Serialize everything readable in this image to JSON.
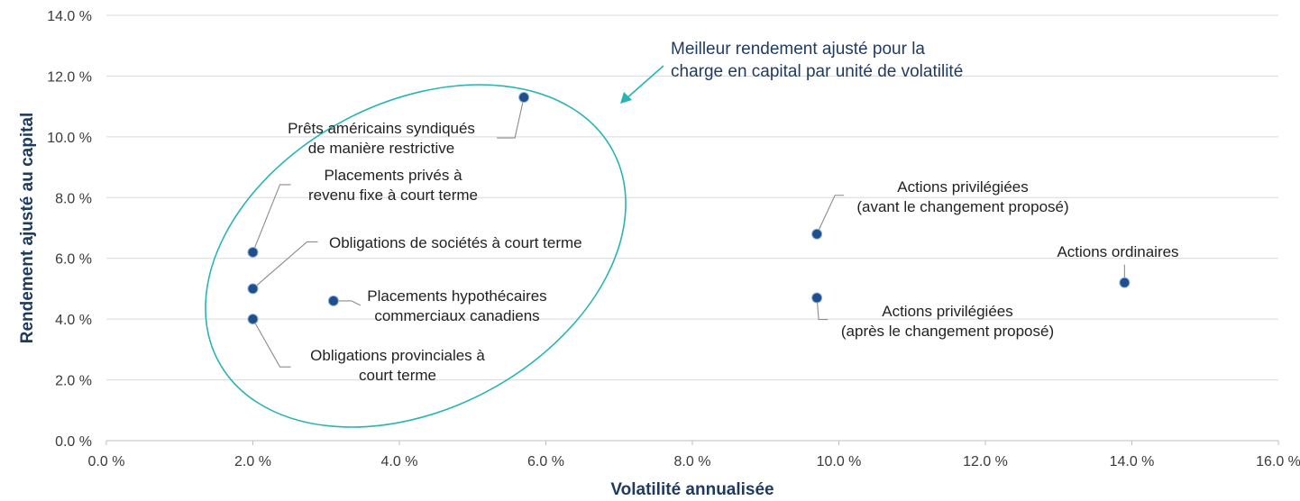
{
  "chart_data": {
    "type": "scatter",
    "xlabel": "Volatilité annualisée",
    "ylabel": "Rendement ajusté au capital",
    "xlim": [
      0,
      16
    ],
    "ylim": [
      0,
      14
    ],
    "x_ticks": [
      0,
      2,
      4,
      6,
      8,
      10,
      12,
      14,
      16
    ],
    "y_ticks": [
      0,
      2,
      4,
      6,
      8,
      10,
      12,
      14
    ],
    "x_tick_labels": [
      "0.0 %",
      "2.0 %",
      "4.0 %",
      "6.0 %",
      "8.0 %",
      "10.0 %",
      "12.0 %",
      "14.0 %",
      "16.0 %"
    ],
    "y_tick_labels": [
      "0.0 %",
      "2.0 %",
      "4.0 %",
      "6.0 %",
      "8.0 %",
      "10.0 %",
      "12.0 %",
      "14.0 %"
    ],
    "grid": "horizontal",
    "colors": {
      "point": "#1f4e8c",
      "ellipse": "#2ab3b3",
      "axis_title": "#1f3a5f",
      "leader": "#8c8c8c"
    },
    "points": [
      {
        "x": 5.7,
        "y": 11.3,
        "label": [
          "Prêts américains syndiqués",
          "de manière restrictive"
        ]
      },
      {
        "x": 2.0,
        "y": 6.2,
        "label": [
          "Placements privés à",
          "revenu fixe à court terme"
        ]
      },
      {
        "x": 2.0,
        "y": 5.0,
        "label": [
          "Obligations de sociétés à court terme"
        ]
      },
      {
        "x": 3.1,
        "y": 4.6,
        "label": [
          "Placements hypothécaires",
          "commerciaux canadiens"
        ]
      },
      {
        "x": 2.0,
        "y": 4.0,
        "label": [
          "Obligations provinciales à",
          "court terme"
        ]
      },
      {
        "x": 9.7,
        "y": 6.8,
        "label": [
          "Actions privilégiées",
          "(avant le changement proposé)"
        ]
      },
      {
        "x": 9.7,
        "y": 4.7,
        "label": [
          "Actions privilégiées",
          "(après le changement proposé)"
        ]
      },
      {
        "x": 13.9,
        "y": 5.2,
        "label": [
          "Actions ordinaires"
        ]
      }
    ],
    "annotation": [
      "Meilleur rendement ajusté pour la",
      "charge en capital par unité de volatilité"
    ]
  }
}
